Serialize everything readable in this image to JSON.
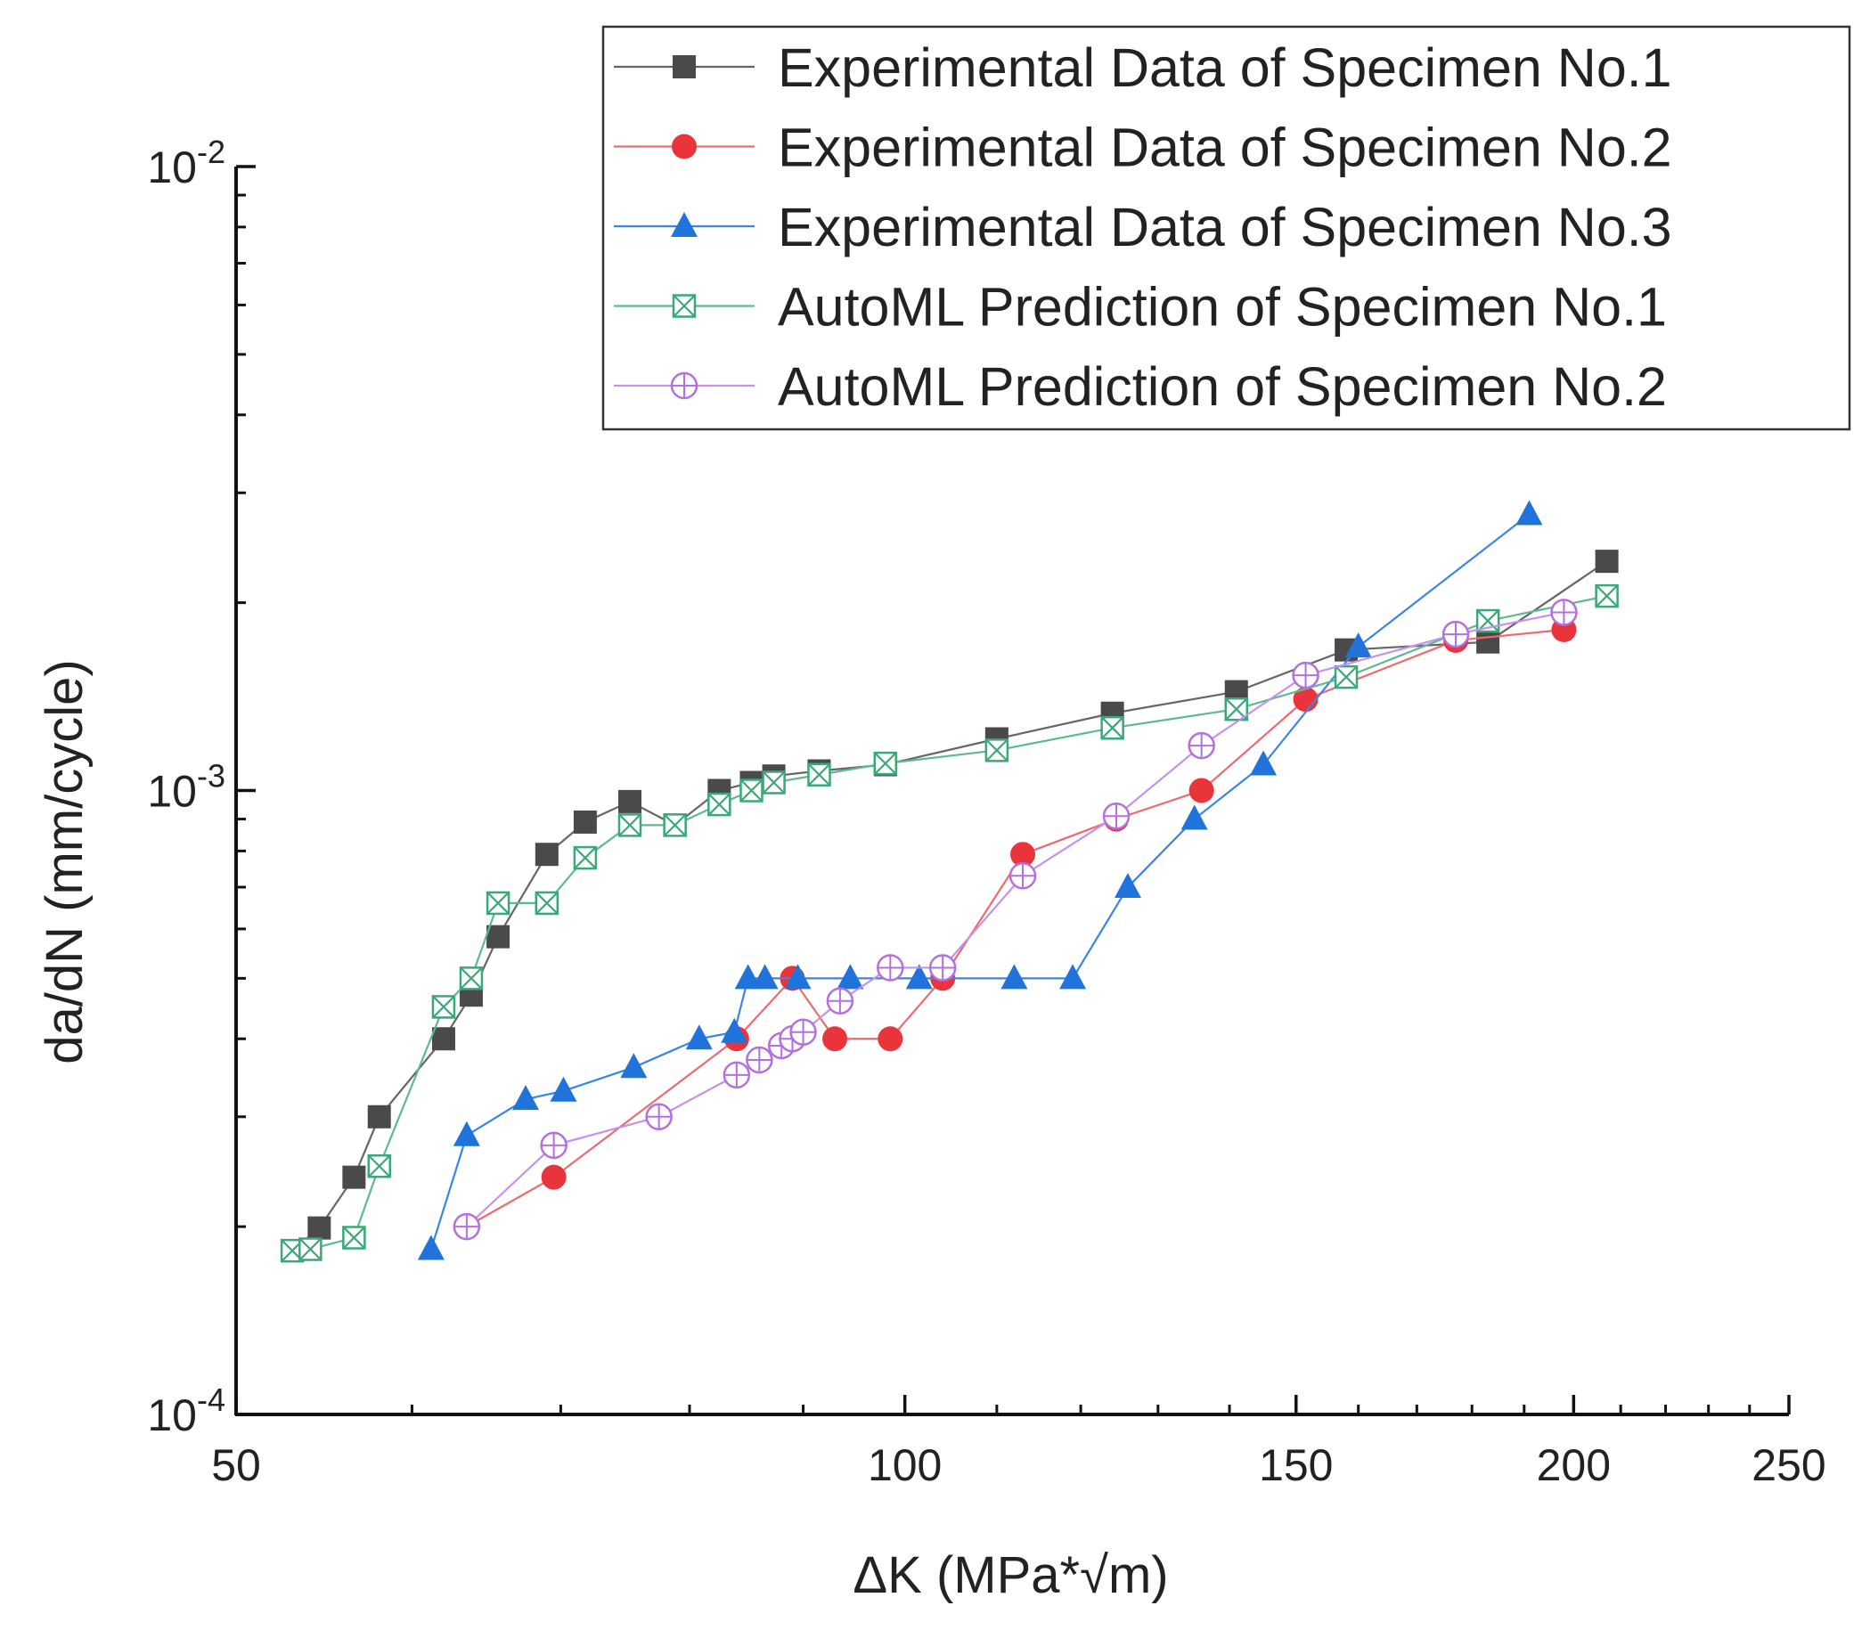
{
  "chart_data": {
    "type": "scatter",
    "title": "",
    "xlabel": "ΔK (MPa*√m)",
    "ylabel": "da/dN (mm/cycle)",
    "xscale": "log",
    "yscale": "log",
    "xlim": [
      50,
      250
    ],
    "ylim": [
      0.0001,
      0.01
    ],
    "x_ticks": [
      {
        "value": 50,
        "label": "50"
      },
      {
        "value": 100,
        "label": "100"
      },
      {
        "value": 150,
        "label": "150"
      },
      {
        "value": 200,
        "label": "200"
      },
      {
        "value": 250,
        "label": "250"
      }
    ],
    "y_ticks": [
      {
        "value": 0.01,
        "base": "10",
        "exp": "-2"
      },
      {
        "value": 0.001,
        "base": "10",
        "exp": "-3"
      },
      {
        "value": 0.0001,
        "base": "10",
        "exp": "-4"
      }
    ],
    "legend_position": "top-right",
    "series": [
      {
        "name": "Experimental Data of Specimen No.1",
        "marker": "square",
        "color": "#4a4a4a",
        "line_color": "#666666",
        "points": [
          [
            53.0,
            0.000183
          ],
          [
            54.5,
            0.000199
          ],
          [
            56.5,
            0.00024
          ],
          [
            58.0,
            0.0003
          ],
          [
            62.0,
            0.0004
          ],
          [
            63.8,
            0.00047
          ],
          [
            65.6,
            0.000583
          ],
          [
            69.0,
            0.00079
          ],
          [
            71.8,
            0.00089
          ],
          [
            75.2,
            0.00096
          ],
          [
            78.8,
            0.00088
          ],
          [
            82.5,
            0.001
          ],
          [
            85.3,
            0.00103
          ],
          [
            87.3,
            0.001055
          ],
          [
            91.5,
            0.001075
          ],
          [
            98.0,
            0.0011
          ],
          [
            110.0,
            0.00121
          ],
          [
            124.0,
            0.00133
          ],
          [
            141.0,
            0.00144
          ],
          [
            158.0,
            0.00168
          ],
          [
            183.0,
            0.00173
          ],
          [
            207.0,
            0.00233
          ]
        ]
      },
      {
        "name": "Experimental Data of Specimen No.2",
        "marker": "circle",
        "color": "#e8343a",
        "line_color": "#ef6a6e",
        "points": [
          [
            63.5,
            0.0002
          ],
          [
            69.5,
            0.00024
          ],
          [
            84.0,
            0.0004
          ],
          [
            89.0,
            0.0005
          ],
          [
            93.0,
            0.0004
          ],
          [
            98.5,
            0.0004
          ],
          [
            104.0,
            0.0005
          ],
          [
            113.0,
            0.00079
          ],
          [
            124.5,
            0.0009
          ],
          [
            136.0,
            0.001
          ],
          [
            151.5,
            0.0014
          ],
          [
            177.0,
            0.00174
          ],
          [
            198.0,
            0.00181
          ]
        ]
      },
      {
        "name": "Experimental Data of Specimen No.3",
        "marker": "triangle",
        "color": "#1f73db",
        "line_color": "#3a86e6",
        "points": [
          [
            61.2,
            0.000184
          ],
          [
            63.5,
            0.00028
          ],
          [
            67.5,
            0.00032
          ],
          [
            70.2,
            0.00033
          ],
          [
            75.5,
            0.00036
          ],
          [
            80.8,
            0.0004
          ],
          [
            83.8,
            0.00041
          ],
          [
            85.0,
            0.0005
          ],
          [
            86.5,
            0.0005
          ],
          [
            89.5,
            0.0005
          ],
          [
            94.5,
            0.0005
          ],
          [
            101.5,
            0.0005
          ],
          [
            112.0,
            0.0005
          ],
          [
            119.0,
            0.0005
          ],
          [
            126.0,
            0.0007
          ],
          [
            135.0,
            0.0009
          ],
          [
            145.0,
            0.0011
          ],
          [
            160.0,
            0.0017
          ],
          [
            191.0,
            0.00277
          ]
        ]
      },
      {
        "name": "AutoML Prediction of Specimen No.1",
        "marker": "square-x",
        "color": "#3aa878",
        "line_color": "#5fb98e",
        "points": [
          [
            53.0,
            0.000183
          ],
          [
            54.0,
            0.000184
          ],
          [
            56.5,
            0.000192
          ],
          [
            58.0,
            0.00025
          ],
          [
            62.0,
            0.00045
          ],
          [
            63.8,
            0.0005
          ],
          [
            65.6,
            0.00066
          ],
          [
            69.0,
            0.00066
          ],
          [
            71.8,
            0.00078
          ],
          [
            75.2,
            0.00088
          ],
          [
            78.8,
            0.00088
          ],
          [
            82.5,
            0.00095
          ],
          [
            85.3,
            0.001
          ],
          [
            87.3,
            0.00103
          ],
          [
            91.5,
            0.00106
          ],
          [
            98.0,
            0.001105
          ],
          [
            110.0,
            0.00116
          ],
          [
            124.0,
            0.00126
          ],
          [
            141.0,
            0.00135
          ],
          [
            158.0,
            0.00152
          ],
          [
            183.0,
            0.00187
          ],
          [
            207.0,
            0.00205
          ]
        ]
      },
      {
        "name": "AutoML Prediction of Specimen No.2",
        "marker": "circle-plus",
        "color": "#b46fe0",
        "line_color": "#c591ea",
        "points": [
          [
            63.5,
            0.0002
          ],
          [
            69.5,
            0.00027
          ],
          [
            77.5,
            0.0003
          ],
          [
            84.0,
            0.00035
          ],
          [
            86.0,
            0.00037
          ],
          [
            88.0,
            0.00039
          ],
          [
            89.0,
            0.0004
          ],
          [
            90.0,
            0.00041
          ],
          [
            93.5,
            0.00046
          ],
          [
            98.5,
            0.00052
          ],
          [
            104.0,
            0.00052
          ],
          [
            113.0,
            0.00073
          ],
          [
            124.5,
            0.00091
          ],
          [
            136.0,
            0.00118
          ],
          [
            151.5,
            0.00153
          ],
          [
            177.0,
            0.00178
          ],
          [
            198.0,
            0.00193
          ]
        ]
      }
    ]
  }
}
